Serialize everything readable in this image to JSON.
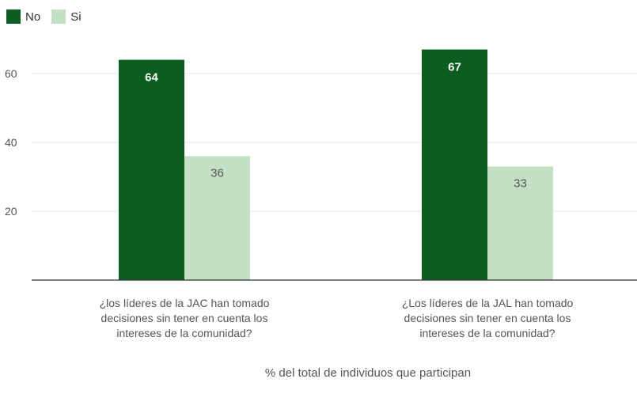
{
  "chart_data": {
    "type": "bar",
    "categories": [
      [
        "¿los líderes de la JAC han tomado",
        "decisiones sin tener en cuenta los",
        "intereses de la comunidad?"
      ],
      [
        "¿Los líderes de la JAL han tomado",
        "decisiones sin tener en cuenta los",
        "intereses de la comunidad?"
      ]
    ],
    "series": [
      {
        "name": "No",
        "values": [
          64,
          67
        ],
        "color": "#0b5e20",
        "label_color": "#ffffff"
      },
      {
        "name": "Si",
        "values": [
          36,
          33
        ],
        "color": "#c3dfc4",
        "label_color": "#555555"
      }
    ],
    "yticks": [
      20,
      40,
      60
    ],
    "ylim": [
      0,
      70
    ],
    "xlabel": "% del total de individuos que participan",
    "grid": true,
    "legend": "top-left"
  }
}
